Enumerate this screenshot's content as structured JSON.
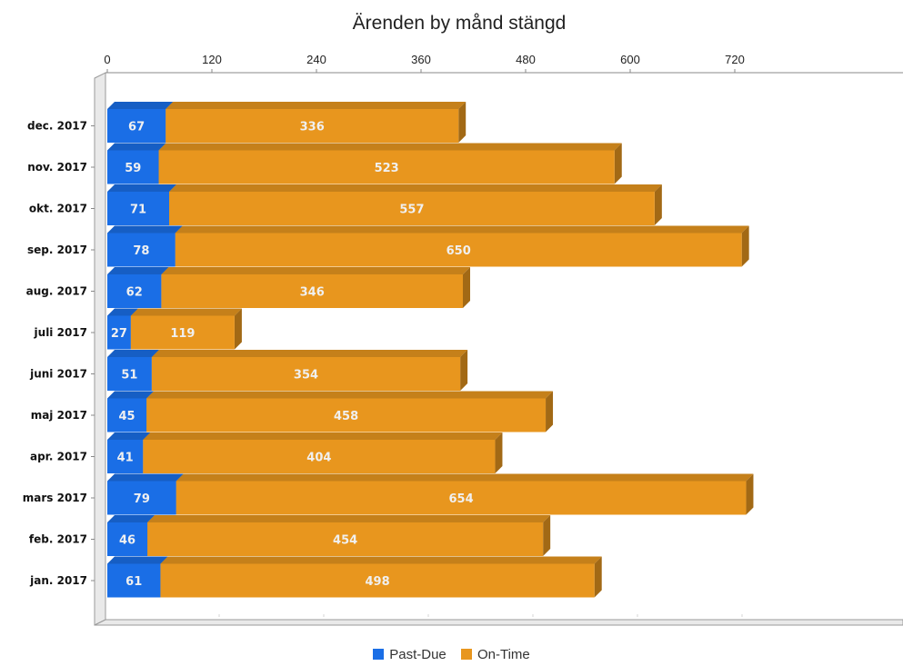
{
  "chart_data": {
    "type": "bar",
    "orientation": "horizontal",
    "stacked": true,
    "title": "Ärenden by månd stängd",
    "categories": [
      "dec. 2017",
      "nov. 2017",
      "okt. 2017",
      "sep. 2017",
      "aug. 2017",
      "juli 2017",
      "juni 2017",
      "maj 2017",
      "apr. 2017",
      "mars 2017",
      "feb. 2017",
      "jan. 2017"
    ],
    "series": [
      {
        "name": "Past-Due",
        "color": "#1a6ee6",
        "values": [
          67,
          59,
          71,
          78,
          62,
          27,
          51,
          45,
          41,
          79,
          46,
          61
        ]
      },
      {
        "name": "On-Time",
        "color": "#e8961e",
        "values": [
          336,
          523,
          557,
          650,
          346,
          119,
          354,
          458,
          404,
          654,
          454,
          498
        ]
      }
    ],
    "xticks": [
      0,
      120,
      240,
      360,
      480,
      600,
      720
    ],
    "xlim": [
      0,
      760
    ],
    "axis_position": "top",
    "grid": true,
    "legend_position": "bottom"
  }
}
